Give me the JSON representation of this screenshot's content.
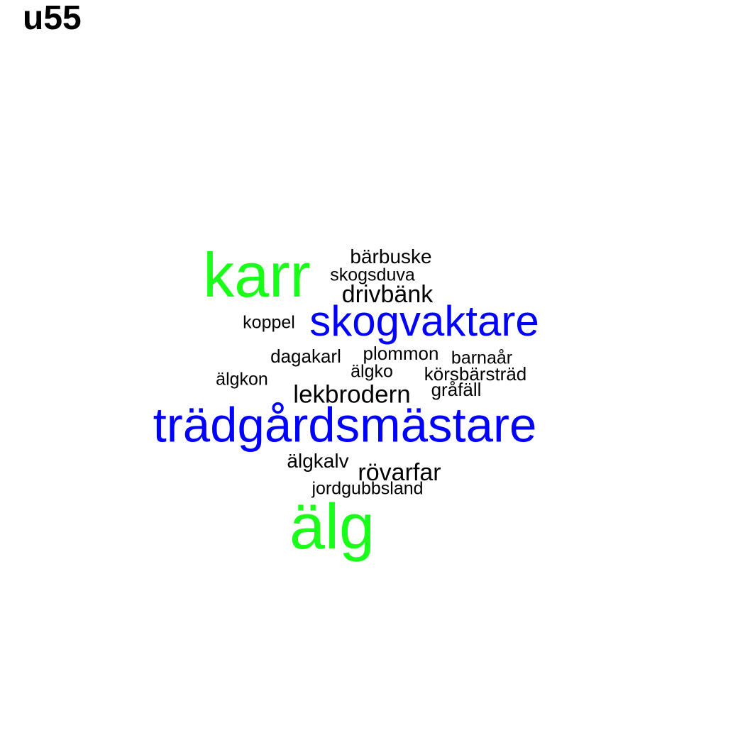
{
  "title": "u55",
  "colors": {
    "green": "#1aff1a",
    "blue": "#0000ff",
    "black": "#000000"
  },
  "words": [
    {
      "text": "karr",
      "color": "green"
    },
    {
      "text": "bärbuske",
      "color": "black"
    },
    {
      "text": "skogsduva",
      "color": "black"
    },
    {
      "text": "drivbänk",
      "color": "black"
    },
    {
      "text": "koppel",
      "color": "black"
    },
    {
      "text": "skogvaktare",
      "color": "blue"
    },
    {
      "text": "dagakarl",
      "color": "black"
    },
    {
      "text": "plommon",
      "color": "black"
    },
    {
      "text": "barnaår",
      "color": "black"
    },
    {
      "text": "älgko",
      "color": "black"
    },
    {
      "text": "körsbärsträd",
      "color": "black"
    },
    {
      "text": "älgkon",
      "color": "black"
    },
    {
      "text": "gråfäll",
      "color": "black"
    },
    {
      "text": "lekbrodern",
      "color": "black"
    },
    {
      "text": "trädgårdsmästare",
      "color": "blue"
    },
    {
      "text": "älgkalv",
      "color": "black"
    },
    {
      "text": "rövarfar",
      "color": "black"
    },
    {
      "text": "jordgubbsland",
      "color": "black"
    },
    {
      "text": "älg",
      "color": "green"
    }
  ]
}
